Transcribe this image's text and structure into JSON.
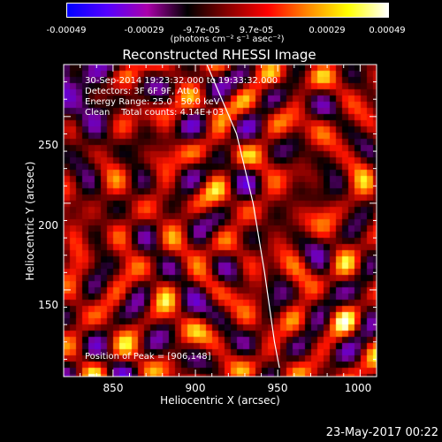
{
  "colorbar": {
    "ticks": [
      "-0.00049",
      "-0.00029",
      "-9.7e-05",
      "9.7e-05",
      "0.00029",
      "0.00049"
    ],
    "unit": "(photons cm⁻² s⁻¹ asec⁻²)",
    "colors": [
      "#0000ff",
      "#5500ff",
      "#aa00aa",
      "#000000",
      "#880000",
      "#ff0000",
      "#ff8800",
      "#ffff00",
      "#ffffff"
    ]
  },
  "chart_data": {
    "type": "heatmap",
    "title": "Reconstructed RHESSI Image",
    "xlabel": "Heliocentric X (arcsec)",
    "ylabel": "Heliocentric Y (arcsec)",
    "xlim": [
      820,
      1010
    ],
    "ylim": [
      100,
      280
    ],
    "x_ticks": [
      "850",
      "900",
      "950",
      "1000"
    ],
    "y_ticks": [
      "150",
      "200",
      "250"
    ],
    "limb_curve": [
      [
        907,
        280
      ],
      [
        925,
        240
      ],
      [
        935,
        200
      ],
      [
        942,
        160
      ],
      [
        948,
        120
      ],
      [
        951,
        105
      ]
    ],
    "value_range": [
      -0.00049,
      0.00049
    ],
    "annotations": [
      "30-Sep-2014 19:23:32.000 to 19:33:32.000",
      "Detectors: 3F 6F 9F, Att 0",
      "Energy Range: 25.0 - 50.0 keV",
      "Clean    Total counts: 4.14E+03"
    ],
    "peak_label": "Position of Peak = [906,148]",
    "peak": [
      906,
      148
    ]
  },
  "timestamp": "23-May-2017 00:22"
}
